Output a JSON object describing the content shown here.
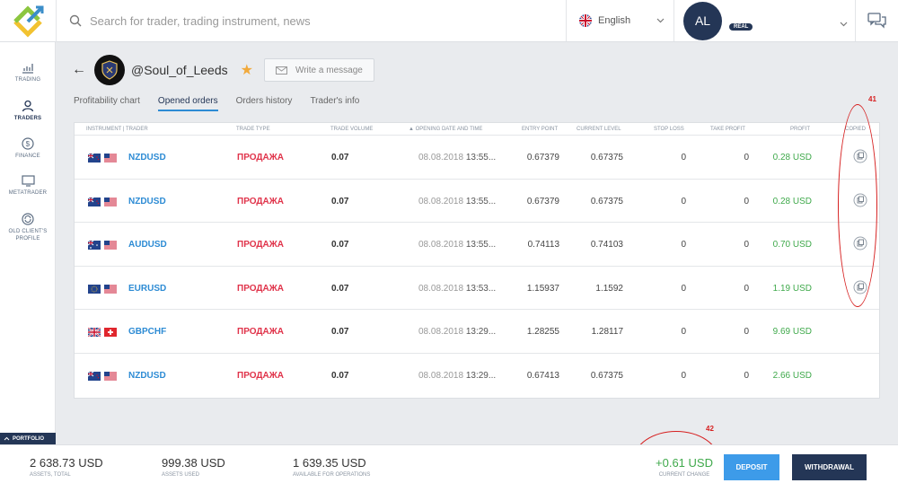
{
  "header": {
    "search_placeholder": "Search for trader, trading instrument, news",
    "language": "English",
    "avatar_initials": "AL",
    "account_badge": "REAL"
  },
  "sidebar": {
    "items": [
      {
        "label": "TRADING",
        "icon": "chart-icon"
      },
      {
        "label": "TRADERS",
        "icon": "traders-icon"
      },
      {
        "label": "FINANCE",
        "icon": "dollar-icon"
      },
      {
        "label": "METATRADER",
        "icon": "monitor-icon"
      },
      {
        "label": "OLD CLIENT'S PROFILE",
        "icon": "refresh-icon"
      }
    ],
    "portfolio_label": "PORTFOLIO"
  },
  "trader": {
    "name": "@Soul_of_Leeds",
    "write_message": "Write a message"
  },
  "tabs": [
    "Profitability chart",
    "Opened orders",
    "Orders history",
    "Trader's info"
  ],
  "table": {
    "columns": [
      "INSTRUMENT | TRADER",
      "TRADE TYPE",
      "TRADE VOLUME",
      "▲ OPENING DATE AND TIME",
      "ENTRY POINT",
      "CURRENT LEVEL",
      "STOP LOSS",
      "TAKE PROFIT",
      "PROFIT",
      "COPIED"
    ],
    "rows": [
      {
        "flags": [
          "nz",
          "us"
        ],
        "instrument": "NZDUSD",
        "type": "ПРОДАЖА",
        "volume": "0.07",
        "date": "08.08.2018",
        "time": "13:55...",
        "entry": "0.67379",
        "current": "0.67375",
        "sl": "0",
        "tp": "0",
        "profit": "0.28 USD",
        "copied": true
      },
      {
        "flags": [
          "nz",
          "us"
        ],
        "instrument": "NZDUSD",
        "type": "ПРОДАЖА",
        "volume": "0.07",
        "date": "08.08.2018",
        "time": "13:55...",
        "entry": "0.67379",
        "current": "0.67375",
        "sl": "0",
        "tp": "0",
        "profit": "0.28 USD",
        "copied": true
      },
      {
        "flags": [
          "au",
          "us"
        ],
        "instrument": "AUDUSD",
        "type": "ПРОДАЖА",
        "volume": "0.07",
        "date": "08.08.2018",
        "time": "13:55...",
        "entry": "0.74113",
        "current": "0.74103",
        "sl": "0",
        "tp": "0",
        "profit": "0.70 USD",
        "copied": true
      },
      {
        "flags": [
          "eu",
          "us"
        ],
        "instrument": "EURUSD",
        "type": "ПРОДАЖА",
        "volume": "0.07",
        "date": "08.08.2018",
        "time": "13:53...",
        "entry": "1.15937",
        "current": "1.1592",
        "sl": "0",
        "tp": "0",
        "profit": "1.19 USD",
        "copied": true
      },
      {
        "flags": [
          "gb",
          "ch"
        ],
        "instrument": "GBPCHF",
        "type": "ПРОДАЖА",
        "volume": "0.07",
        "date": "08.08.2018",
        "time": "13:29...",
        "entry": "1.28255",
        "current": "1.28117",
        "sl": "0",
        "tp": "0",
        "profit": "9.69 USD",
        "copied": false
      },
      {
        "flags": [
          "nz",
          "us"
        ],
        "instrument": "NZDUSD",
        "type": "ПРОДАЖА",
        "volume": "0.07",
        "date": "08.08.2018",
        "time": "13:29...",
        "entry": "0.67413",
        "current": "0.67375",
        "sl": "0",
        "tp": "0",
        "profit": "2.66 USD",
        "copied": false
      }
    ]
  },
  "annotations": [
    "41",
    "42"
  ],
  "footer": {
    "assets_total": "2 638.73 USD",
    "assets_total_label": "ASSETS, TOTAL",
    "assets_used": "999.38 USD",
    "assets_used_label": "ASSETS USED",
    "available": "1 639.35 USD",
    "available_label": "AVAILABLE FOR OPERATIONS",
    "current_change": "+0.61 USD",
    "current_change_label": "CURRENT CHANGE",
    "deposit": "DEPOSIT",
    "withdrawal": "WITHDRAWAL"
  },
  "colors": {
    "navy": "#243656",
    "link_blue": "#2d8bd4",
    "sell_red": "#e0334a",
    "profit_green": "#3fa94b",
    "annotation_red": "#d61f1f"
  }
}
